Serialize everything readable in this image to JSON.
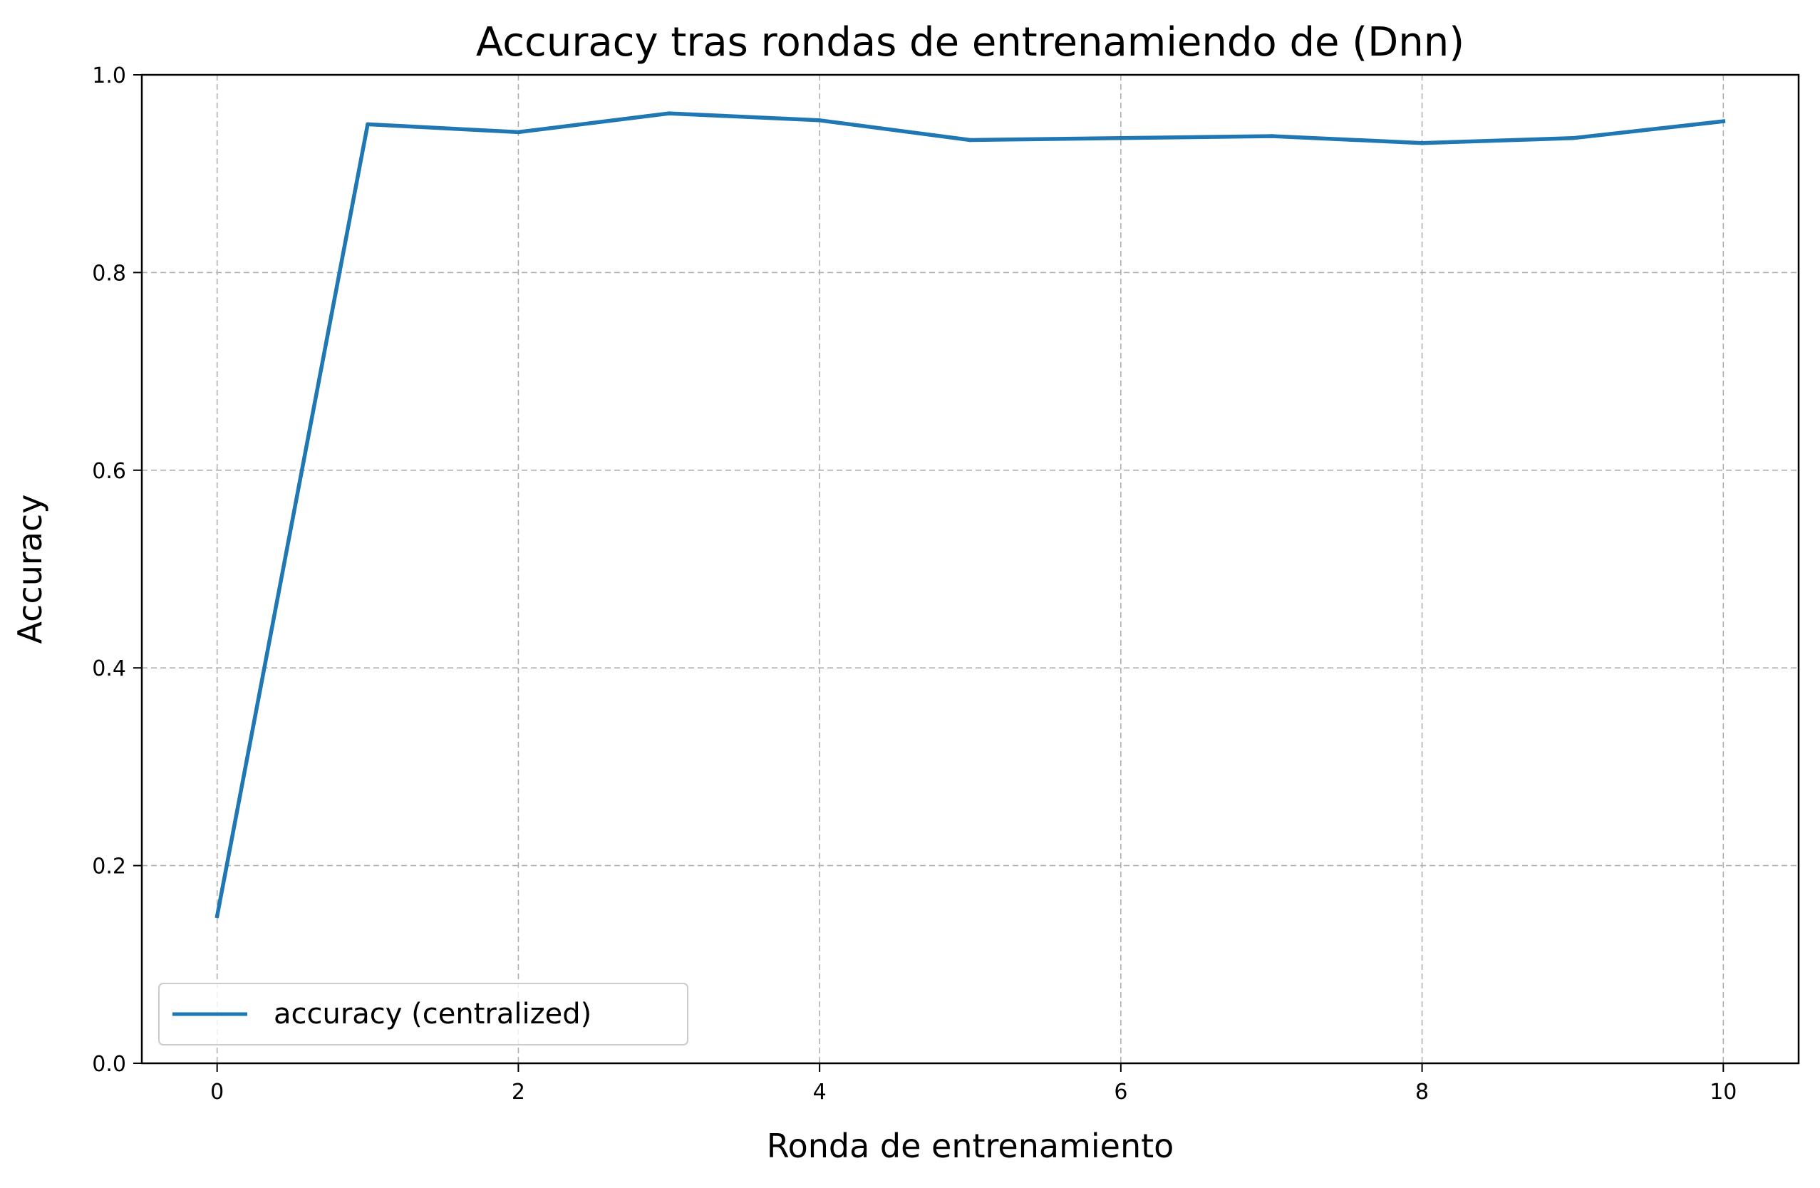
{
  "chart_data": {
    "type": "line",
    "title": "Accuracy tras rondas de entrenamiendo de (Dnn)",
    "xlabel": "Ronda de entrenamiento",
    "ylabel": "Accuracy",
    "xlim": [
      -0.5,
      10.5
    ],
    "ylim": [
      0.0,
      1.0
    ],
    "xticks": [
      "0",
      "2",
      "4",
      "6",
      "8",
      "10"
    ],
    "yticks": [
      "0.0",
      "0.2",
      "0.4",
      "0.6",
      "0.8",
      "1.0"
    ],
    "grid": true,
    "legend_position": "lower-left",
    "series": [
      {
        "name": "accuracy (centralized)",
        "color": "#1f77b4",
        "x": [
          0,
          1,
          2,
          3,
          4,
          5,
          6,
          7,
          8,
          9,
          10
        ],
        "y": [
          0.149,
          0.95,
          0.942,
          0.961,
          0.954,
          0.934,
          0.936,
          0.938,
          0.931,
          0.936,
          0.953
        ]
      }
    ]
  }
}
